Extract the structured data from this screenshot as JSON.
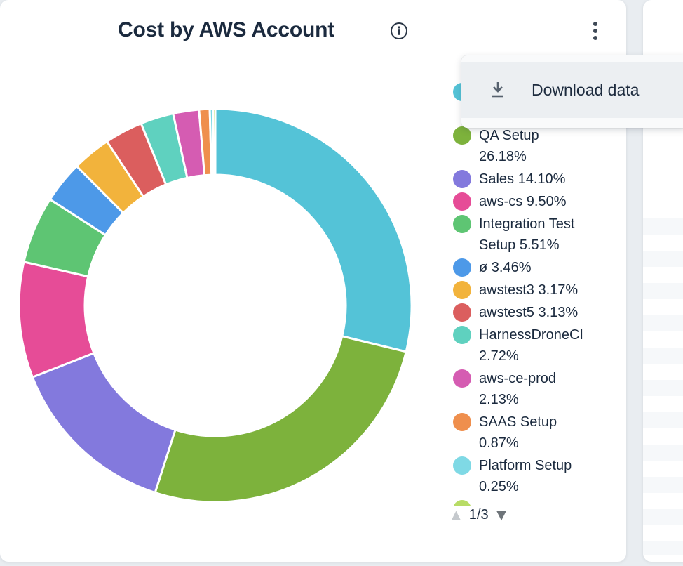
{
  "header": {
    "title": "Cost by AWS Account",
    "info_icon": "info-circle-icon",
    "more_menu_icon": "kebab-vertical-icon"
  },
  "menu": {
    "items": [
      {
        "icon": "download-icon",
        "label": "Download data"
      }
    ]
  },
  "chart_data": {
    "type": "pie",
    "variant": "donut",
    "title": "Cost by AWS Account",
    "legend_position": "right",
    "start_angle_deg": 0,
    "direction": "clockwise",
    "slices": [
      {
        "label": "",
        "pct": 28.78,
        "color": "#54C3D7",
        "label_visible": false
      },
      {
        "label": "QA Setup",
        "pct": 26.18,
        "color": "#7DB23C",
        "label_visible": true
      },
      {
        "label": "Sales",
        "pct": 14.1,
        "color": "#8379DD",
        "label_visible": true
      },
      {
        "label": "aws-cs",
        "pct": 9.5,
        "color": "#E64C97",
        "label_visible": true
      },
      {
        "label": "Integration Test Setup",
        "pct": 5.51,
        "color": "#5EC573",
        "label_visible": true
      },
      {
        "label": "ø",
        "pct": 3.46,
        "color": "#4D99E8",
        "label_visible": true
      },
      {
        "label": "awstest3",
        "pct": 3.17,
        "color": "#F2B33C",
        "label_visible": true
      },
      {
        "label": "awstest5",
        "pct": 3.13,
        "color": "#DB5E5E",
        "label_visible": true
      },
      {
        "label": "HarnessDroneCI",
        "pct": 2.72,
        "color": "#5FD1BF",
        "label_visible": true
      },
      {
        "label": "aws-ce-prod",
        "pct": 2.13,
        "color": "#D55CB2",
        "label_visible": true
      },
      {
        "label": "SAAS Setup",
        "pct": 0.87,
        "color": "#EF8F4D",
        "label_visible": true
      },
      {
        "label": "Platform Setup",
        "pct": 0.25,
        "color": "#7FD9E5",
        "label_visible": true
      },
      {
        "label": "",
        "pct": 0.2,
        "color": "#B8DC66",
        "label_visible": false
      }
    ]
  },
  "legend": {
    "items": [
      {
        "color": "#54C3D7",
        "lines": [
          "",
          ""
        ]
      },
      {
        "color": "#7DB23C",
        "lines": [
          "QA Setup",
          "26.18%"
        ]
      },
      {
        "color": "#8379DD",
        "lines": [
          "Sales 14.10%"
        ]
      },
      {
        "color": "#E64C97",
        "lines": [
          "aws-cs 9.50%"
        ]
      },
      {
        "color": "#5EC573",
        "lines": [
          "Integration Test",
          "Setup 5.51%"
        ]
      },
      {
        "color": "#4D99E8",
        "lines": [
          "ø 3.46%"
        ]
      },
      {
        "color": "#F2B33C",
        "lines": [
          "awstest3 3.17%"
        ]
      },
      {
        "color": "#DB5E5E",
        "lines": [
          "awstest5 3.13%"
        ]
      },
      {
        "color": "#5FD1BF",
        "lines": [
          "HarnessDroneCI",
          "2.72%"
        ]
      },
      {
        "color": "#D55CB2",
        "lines": [
          "aws-ce-prod",
          "2.13%"
        ]
      },
      {
        "color": "#EF8F4D",
        "lines": [
          "SAAS Setup",
          "0.87%"
        ]
      },
      {
        "color": "#7FD9E5",
        "lines": [
          "Platform Setup",
          "0.25%"
        ]
      },
      {
        "color": "#B8DC66",
        "lines": [
          ""
        ]
      }
    ],
    "pagination": {
      "up_symbol": "▲",
      "page": "1/3",
      "down_symbol": "▼"
    }
  },
  "colors": {
    "page_background": "#E9EDF1",
    "card_background": "#FFFFFF",
    "text": "#1B2A3E",
    "menu_item_background": "#ECEFF2",
    "icon_gray": "#56616E",
    "pagination_up": "#C5C9CD",
    "pagination_down": "#6E7479"
  }
}
